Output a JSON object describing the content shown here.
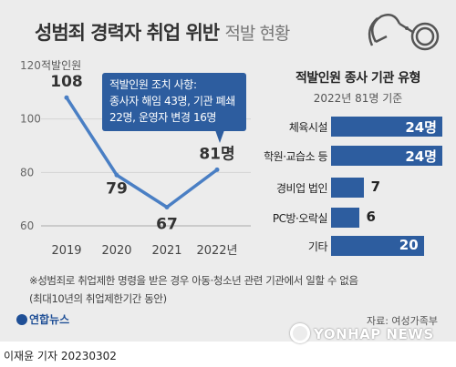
{
  "header": {
    "title_bold": "성범죄 경력자 취업 위반",
    "title_light": "적발 현황"
  },
  "chart_data": [
    {
      "type": "line",
      "y_unit": "적발인원",
      "x": [
        "2019",
        "2020",
        "2021",
        "2022년"
      ],
      "values": [
        108,
        79,
        67,
        81
      ],
      "value_labels": [
        "108",
        "79",
        "67",
        "81명"
      ],
      "ylim": [
        60,
        120
      ],
      "yticks": [
        60,
        80,
        100,
        120
      ],
      "line_color": "#4a7fc4",
      "annotation": [
        "적발인원 조치 사항:",
        "종사자 해임 43명, 기관 폐쇄",
        "22명, 운영자 변경 16명"
      ]
    },
    {
      "type": "bar",
      "orientation": "horizontal",
      "title": "적발인원 종사 기관 유형",
      "subtitle": "2022년 81명 기준",
      "categories": [
        "체육시설",
        "학원·교습소 등",
        "경비업 법인",
        "PC방·오락실",
        "기타"
      ],
      "values": [
        24,
        24,
        7,
        6,
        20
      ],
      "value_labels": [
        "24명",
        "24명",
        "7",
        "6",
        "20"
      ],
      "bar_color": "#2d5d9f"
    }
  ],
  "footnote": [
    "※성범죄로 취업제한 명령을 받은 경우 아동·청소년 관련 기관에서 일할 수 없음",
    "(최대10년의 취업제한기간 동안)"
  ],
  "source": "자료: 여성가족부",
  "logo": "연합뉴스",
  "watermark": "YONHAP NEWS",
  "byline": "이재윤 기자  20230302"
}
